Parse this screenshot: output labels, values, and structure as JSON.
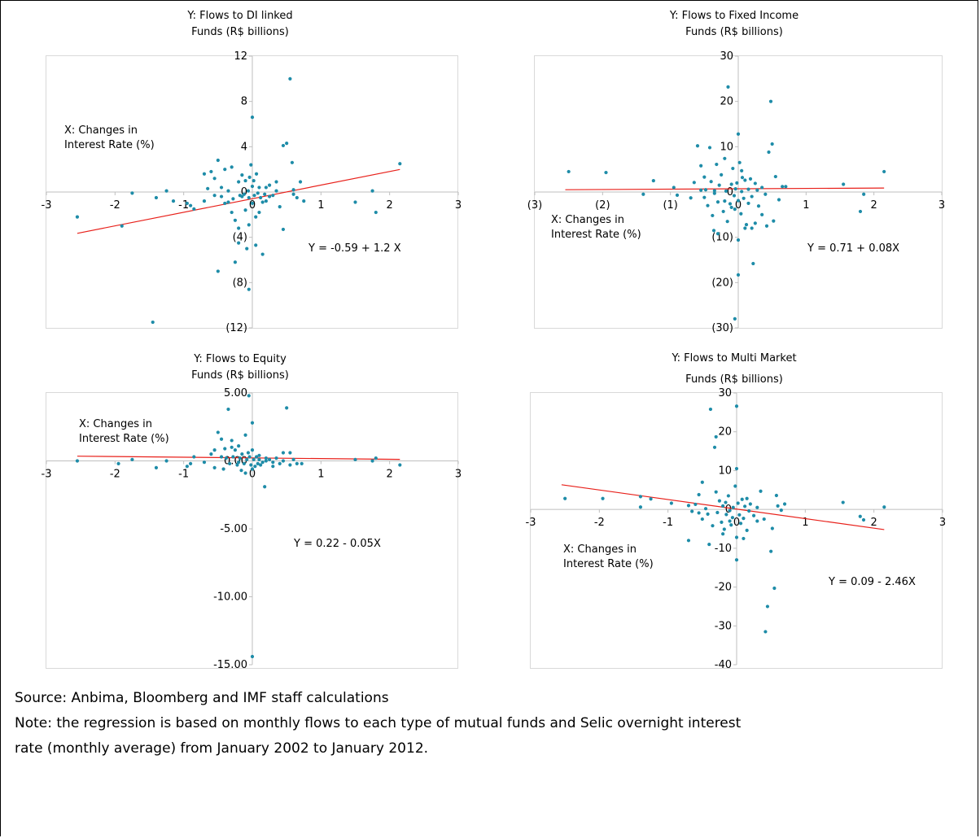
{
  "chart_data": [
    {
      "type": "scatter",
      "title": "Y: Flows to DI linked\nFunds (R$ billions)",
      "xlabel": "X: Changes in Interest Rate (%)",
      "equation": "Y = -0.59 + 1.2 X",
      "xlim": [
        -3,
        3
      ],
      "ylim": [
        -12,
        12
      ],
      "x_ticks": [
        "-3",
        "-2",
        "-1",
        "0",
        "1",
        "2",
        "3"
      ],
      "y_ticks": [
        "(12)",
        "(8)",
        "(4)",
        "0",
        "4",
        "8",
        "12"
      ],
      "y_tick_values": [
        -12,
        -8,
        -4,
        0,
        4,
        8,
        12
      ],
      "trendline": {
        "intercept": -0.59,
        "slope": 1.2,
        "x_range": [
          -2.55,
          2.15
        ]
      },
      "points": [
        [
          -2.55,
          -2.2
        ],
        [
          -1.9,
          -3.0
        ],
        [
          -1.75,
          -0.1
        ],
        [
          -1.4,
          -0.5
        ],
        [
          -1.25,
          0.1
        ],
        [
          -1.15,
          -0.8
        ],
        [
          -0.95,
          -1.0
        ],
        [
          -0.85,
          -1.5
        ],
        [
          -0.7,
          -0.8
        ],
        [
          -0.6,
          1.8
        ],
        [
          -0.55,
          1.2
        ],
        [
          -0.5,
          2.8
        ],
        [
          -0.45,
          -0.4
        ],
        [
          -0.45,
          0.4
        ],
        [
          -0.4,
          -1.0
        ],
        [
          -0.35,
          0.1
        ],
        [
          -0.3,
          2.2
        ],
        [
          -0.28,
          -0.6
        ],
        [
          -0.25,
          -2.5
        ],
        [
          -0.2,
          -3.2
        ],
        [
          -0.2,
          0.9
        ],
        [
          -0.18,
          -0.3
        ],
        [
          -0.15,
          1.5
        ],
        [
          -0.12,
          -0.2
        ],
        [
          -0.1,
          -1.6
        ],
        [
          -0.1,
          1.0
        ],
        [
          -0.08,
          -5.0
        ],
        [
          -0.06,
          0.1
        ],
        [
          -0.05,
          -0.5
        ],
        [
          -0.04,
          1.3
        ],
        [
          -0.02,
          2.4
        ],
        [
          0.0,
          0.5
        ],
        [
          0.0,
          -1.0
        ],
        [
          0.0,
          6.6
        ],
        [
          0.02,
          1.0
        ],
        [
          0.03,
          -0.3
        ],
        [
          0.05,
          -2.2
        ],
        [
          0.06,
          1.6
        ],
        [
          0.08,
          -0.1
        ],
        [
          0.1,
          0.4
        ],
        [
          0.12,
          -0.5
        ],
        [
          0.15,
          -5.5
        ],
        [
          0.18,
          -0.2
        ],
        [
          0.2,
          -0.8
        ],
        [
          0.25,
          0.6
        ],
        [
          0.3,
          -0.3
        ],
        [
          0.35,
          0.1
        ],
        [
          0.4,
          -1.3
        ],
        [
          0.45,
          4.1
        ],
        [
          0.5,
          4.3
        ],
        [
          0.55,
          10.0
        ],
        [
          0.58,
          2.6
        ],
        [
          0.6,
          0.2
        ],
        [
          0.65,
          -0.5
        ],
        [
          0.7,
          0.9
        ],
        [
          0.75,
          -0.8
        ],
        [
          -0.4,
          2.0
        ],
        [
          -0.3,
          -1.8
        ],
        [
          -0.55,
          -0.3
        ],
        [
          -0.65,
          0.3
        ],
        [
          -0.2,
          -4.5
        ],
        [
          0.05,
          -4.7
        ],
        [
          -0.5,
          -7.0
        ],
        [
          -0.25,
          -6.2
        ],
        [
          -0.05,
          -8.6
        ],
        [
          0.45,
          -3.3
        ],
        [
          -1.45,
          -11.5
        ],
        [
          1.5,
          -0.9
        ],
        [
          1.75,
          0.1
        ],
        [
          1.8,
          -1.8
        ],
        [
          2.15,
          2.5
        ],
        [
          -0.35,
          -0.9
        ],
        [
          -0.15,
          -0.4
        ],
        [
          0.35,
          0.9
        ],
        [
          0.6,
          -0.2
        ],
        [
          0.2,
          0.4
        ],
        [
          -0.7,
          1.6
        ],
        [
          -0.9,
          -1.2
        ],
        [
          0.1,
          -1.8
        ],
        [
          -0.05,
          -2.9
        ],
        [
          0.15,
          -0.9
        ],
        [
          0.25,
          -0.4
        ]
      ]
    },
    {
      "type": "scatter",
      "title": "Y: Flows to Fixed Income\nFunds (R$ billions)",
      "xlabel": "X: Changes in Interest Rate (%)",
      "equation": "Y = 0.71 + 0.08X",
      "xlim": [
        -3,
        3
      ],
      "ylim": [
        -30,
        30
      ],
      "x_ticks": [
        "(3)",
        "(2)",
        "(1)",
        "0",
        "1",
        "2",
        "3"
      ],
      "y_ticks": [
        "(30)",
        "(20)",
        "(10)",
        "0",
        "10",
        "20",
        "30"
      ],
      "y_tick_values": [
        -30,
        -20,
        -10,
        0,
        10,
        20,
        30
      ],
      "trendline": {
        "intercept": 0.71,
        "slope": 0.08,
        "x_range": [
          -2.55,
          2.15
        ]
      },
      "points": [
        [
          -2.5,
          4.5
        ],
        [
          -1.95,
          4.3
        ],
        [
          -1.4,
          -0.5
        ],
        [
          -1.25,
          2.5
        ],
        [
          -0.95,
          1.0
        ],
        [
          -0.9,
          -0.7
        ],
        [
          -0.7,
          -1.3
        ],
        [
          -0.65,
          2.1
        ],
        [
          -0.6,
          10.2
        ],
        [
          -0.55,
          5.8
        ],
        [
          -0.5,
          3.3
        ],
        [
          -0.5,
          -1.2
        ],
        [
          -0.48,
          0.5
        ],
        [
          -0.45,
          -3.0
        ],
        [
          -0.42,
          9.8
        ],
        [
          -0.4,
          2.3
        ],
        [
          -0.38,
          -5.2
        ],
        [
          -0.36,
          -8.5
        ],
        [
          -0.35,
          0.3
        ],
        [
          -0.32,
          6.1
        ],
        [
          -0.3,
          -2.2
        ],
        [
          -0.28,
          1.5
        ],
        [
          -0.25,
          3.8
        ],
        [
          -0.22,
          -4.3
        ],
        [
          -0.2,
          7.4
        ],
        [
          -0.18,
          0.2
        ],
        [
          -0.16,
          -6.5
        ],
        [
          -0.15,
          23.2
        ],
        [
          -0.12,
          -2.6
        ],
        [
          -0.1,
          1.7
        ],
        [
          -0.08,
          5.2
        ],
        [
          -0.06,
          -0.8
        ],
        [
          -0.05,
          -3.8
        ],
        [
          -0.04,
          0.7
        ],
        [
          -0.02,
          2.0
        ],
        [
          0.0,
          12.8
        ],
        [
          0.0,
          -1.9
        ],
        [
          0.0,
          -10.6
        ],
        [
          0.0,
          -18.3
        ],
        [
          0.02,
          6.5
        ],
        [
          0.04,
          -4.8
        ],
        [
          0.05,
          0.1
        ],
        [
          0.06,
          3.2
        ],
        [
          0.08,
          -1.4
        ],
        [
          0.1,
          2.6
        ],
        [
          0.12,
          -7.2
        ],
        [
          0.15,
          0.6
        ],
        [
          0.18,
          2.9
        ],
        [
          0.2,
          -1.0
        ],
        [
          0.22,
          -15.8
        ],
        [
          0.25,
          -6.9
        ],
        [
          0.28,
          0.4
        ],
        [
          0.3,
          -3.1
        ],
        [
          0.35,
          1.0
        ],
        [
          0.4,
          -0.5
        ],
        [
          0.42,
          -7.5
        ],
        [
          0.45,
          8.8
        ],
        [
          0.48,
          20.0
        ],
        [
          0.5,
          10.6
        ],
        [
          0.52,
          -6.4
        ],
        [
          0.55,
          3.4
        ],
        [
          0.6,
          -1.7
        ],
        [
          0.65,
          1.2
        ],
        [
          0.7,
          1.2
        ],
        [
          1.55,
          1.7
        ],
        [
          1.8,
          -4.3
        ],
        [
          1.85,
          -0.5
        ],
        [
          2.15,
          4.5
        ],
        [
          -0.05,
          -28.0
        ],
        [
          0.2,
          -8.0
        ],
        [
          -0.35,
          -0.3
        ],
        [
          0.15,
          -2.5
        ],
        [
          -0.55,
          0.4
        ],
        [
          0.35,
          -5.0
        ],
        [
          -0.2,
          -2.0
        ],
        [
          0.05,
          4.7
        ],
        [
          -0.1,
          -3.4
        ],
        [
          0.25,
          1.9
        ],
        [
          -0.3,
          -9.2
        ],
        [
          0.1,
          -8.0
        ]
      ]
    },
    {
      "type": "scatter",
      "title": "Y: Flows to Equity\nFunds (R$ billions)",
      "xlabel": "X: Changes in Interest Rate (%)",
      "equation": "Y = 0.22 - 0.05X",
      "xlim": [
        -3,
        3
      ],
      "ylim": [
        -15,
        5
      ],
      "x_ticks": [
        "-3",
        "-2",
        "-1",
        "0",
        "1",
        "2",
        "3"
      ],
      "y_ticks": [
        "-15.00",
        "-10.00",
        "-5.00",
        "0.00",
        "5.00"
      ],
      "y_tick_values": [
        -15,
        -10,
        -5,
        0,
        5
      ],
      "trendline": {
        "intercept": 0.22,
        "slope": -0.05,
        "x_range": [
          -2.55,
          2.15
        ]
      },
      "points": [
        [
          -2.55,
          0.0
        ],
        [
          -1.95,
          -0.2
        ],
        [
          -1.75,
          0.1
        ],
        [
          -1.4,
          -0.5
        ],
        [
          -1.25,
          0.0
        ],
        [
          -0.95,
          -0.4
        ],
        [
          -0.9,
          -0.2
        ],
        [
          -0.85,
          0.3
        ],
        [
          -0.7,
          -0.1
        ],
        [
          -0.6,
          0.5
        ],
        [
          -0.55,
          -0.5
        ],
        [
          -0.5,
          2.1
        ],
        [
          -0.45,
          1.6
        ],
        [
          -0.42,
          -0.6
        ],
        [
          -0.4,
          0.9
        ],
        [
          -0.38,
          0.2
        ],
        [
          -0.35,
          3.8
        ],
        [
          -0.33,
          -0.2
        ],
        [
          -0.3,
          1.5
        ],
        [
          -0.28,
          0.3
        ],
        [
          -0.25,
          0.8
        ],
        [
          -0.22,
          -0.3
        ],
        [
          -0.2,
          1.1
        ],
        [
          -0.18,
          0.2
        ],
        [
          -0.16,
          -0.7
        ],
        [
          -0.15,
          0.5
        ],
        [
          -0.12,
          -0.2
        ],
        [
          -0.1,
          -0.9
        ],
        [
          -0.08,
          0.1
        ],
        [
          -0.06,
          0.6
        ],
        [
          -0.05,
          4.8
        ],
        [
          -0.04,
          0.3
        ],
        [
          -0.02,
          -0.3
        ],
        [
          0.0,
          0.8
        ],
        [
          0.0,
          2.8
        ],
        [
          0.0,
          -0.6
        ],
        [
          0.02,
          0.1
        ],
        [
          0.04,
          -0.4
        ],
        [
          0.06,
          0.3
        ],
        [
          0.08,
          -0.2
        ],
        [
          0.1,
          0.1
        ],
        [
          0.12,
          -0.3
        ],
        [
          0.15,
          -0.1
        ],
        [
          0.18,
          -1.9
        ],
        [
          0.2,
          0.2
        ],
        [
          0.25,
          0.1
        ],
        [
          0.3,
          -0.1
        ],
        [
          0.35,
          0.2
        ],
        [
          0.4,
          -0.2
        ],
        [
          0.45,
          0.6
        ],
        [
          0.5,
          3.9
        ],
        [
          0.55,
          -0.3
        ],
        [
          0.6,
          0.1
        ],
        [
          0.65,
          -0.2
        ],
        [
          0.72,
          -0.2
        ],
        [
          1.5,
          0.1
        ],
        [
          1.75,
          0.0
        ],
        [
          1.8,
          0.2
        ],
        [
          2.15,
          -0.3
        ],
        [
          0.0,
          -14.4
        ],
        [
          -0.3,
          1.0
        ],
        [
          -0.1,
          1.9
        ],
        [
          0.2,
          0.0
        ],
        [
          0.45,
          0.0
        ],
        [
          0.55,
          0.6
        ],
        [
          -0.45,
          0.3
        ],
        [
          -0.2,
          -0.1
        ],
        [
          0.3,
          -0.4
        ],
        [
          -0.55,
          0.8
        ],
        [
          0.1,
          0.4
        ]
      ]
    },
    {
      "type": "scatter",
      "title": "Y: Flows to Multi Market\nFunds (R$ billions)",
      "xlabel": "X: Changes in Interest Rate (%)",
      "equation": "Y = 0.09 - 2.46X",
      "xlim": [
        -3,
        3
      ],
      "ylim": [
        -40,
        30
      ],
      "x_ticks": [
        "-3",
        "-2",
        "-1",
        "0",
        "1",
        "2",
        "3"
      ],
      "y_ticks": [
        "-40",
        "-30",
        "-20",
        "-10",
        "0",
        "10",
        "20",
        "30"
      ],
      "y_tick_values": [
        -40,
        -30,
        -20,
        -10,
        0,
        10,
        20,
        30
      ],
      "trendline": {
        "intercept": 0.09,
        "slope": -2.46,
        "x_range": [
          -2.55,
          2.15
        ]
      },
      "points": [
        [
          -2.5,
          2.8
        ],
        [
          -1.95,
          2.8
        ],
        [
          -1.4,
          0.6
        ],
        [
          -1.4,
          3.3
        ],
        [
          -1.25,
          2.7
        ],
        [
          -0.95,
          1.6
        ],
        [
          -0.7,
          1.0
        ],
        [
          -0.7,
          -8.0
        ],
        [
          -0.65,
          -0.5
        ],
        [
          -0.6,
          1.3
        ],
        [
          -0.55,
          3.8
        ],
        [
          -0.5,
          7.0
        ],
        [
          -0.5,
          -2.5
        ],
        [
          -0.45,
          0.2
        ],
        [
          -0.42,
          -1.2
        ],
        [
          -0.4,
          -9.0
        ],
        [
          -0.38,
          25.8
        ],
        [
          -0.35,
          -4.2
        ],
        [
          -0.32,
          16.0
        ],
        [
          -0.3,
          4.5
        ],
        [
          -0.28,
          -0.8
        ],
        [
          -0.25,
          2.2
        ],
        [
          -0.22,
          -3.3
        ],
        [
          -0.2,
          0.9
        ],
        [
          -0.18,
          -5.1
        ],
        [
          -0.16,
          1.8
        ],
        [
          -0.15,
          -1.3
        ],
        [
          -0.12,
          3.5
        ],
        [
          -0.1,
          -0.3
        ],
        [
          -0.08,
          -4.0
        ],
        [
          -0.06,
          -2.1
        ],
        [
          -0.05,
          0.5
        ],
        [
          -0.02,
          6.0
        ],
        [
          0.0,
          26.6
        ],
        [
          0.0,
          10.5
        ],
        [
          0.0,
          -13.0
        ],
        [
          0.0,
          -7.2
        ],
        [
          0.02,
          1.6
        ],
        [
          0.04,
          -1.4
        ],
        [
          0.06,
          -3.6
        ],
        [
          0.08,
          2.6
        ],
        [
          0.1,
          -2.3
        ],
        [
          0.12,
          0.8
        ],
        [
          0.15,
          -5.4
        ],
        [
          0.18,
          -0.4
        ],
        [
          0.2,
          1.4
        ],
        [
          0.25,
          -1.6
        ],
        [
          0.3,
          -3.0
        ],
        [
          0.35,
          4.7
        ],
        [
          0.4,
          -2.5
        ],
        [
          0.42,
          -31.5
        ],
        [
          0.45,
          -25.0
        ],
        [
          0.5,
          -10.8
        ],
        [
          0.52,
          -4.9
        ],
        [
          0.55,
          -20.3
        ],
        [
          0.58,
          3.6
        ],
        [
          0.6,
          0.9
        ],
        [
          0.65,
          -0.2
        ],
        [
          0.7,
          1.4
        ],
        [
          1.55,
          1.8
        ],
        [
          1.8,
          -1.8
        ],
        [
          1.85,
          -2.7
        ],
        [
          2.15,
          0.6
        ],
        [
          -0.3,
          18.7
        ],
        [
          -0.2,
          -6.3
        ],
        [
          0.1,
          -7.5
        ],
        [
          -0.1,
          -3.0
        ],
        [
          0.3,
          0.5
        ],
        [
          -0.55,
          -0.9
        ],
        [
          0.15,
          2.8
        ]
      ]
    }
  ],
  "footer": {
    "source": "Source: Anbima, Bloomberg and IMF staff calculations",
    "note_line1": "Note: the regression is based on monthly flows to each type of mutual funds and Selic overnight interest",
    "note_line2": "rate (monthly average) from January 2002 to January 2012."
  },
  "colors": {
    "point": "#1e8ca8",
    "trendline": "#e8201a",
    "axis": "#bfbfbf"
  }
}
